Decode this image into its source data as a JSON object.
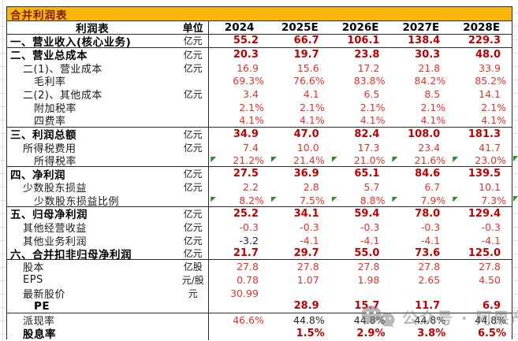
{
  "title": "合并利润表",
  "watermark": {
    "icon": "wechat-icon",
    "text": "公众号 · 阿果产业视角"
  },
  "colors": {
    "title_band": "#FBB60A",
    "title_text": "#7E1E00",
    "bold_value": "#C00000",
    "value": "#E8332B",
    "black_value": "#262626",
    "flag_green": "#2E8B2E"
  },
  "chart_data": {
    "type": "table",
    "title": "合并利润表",
    "columns": [
      "利润表",
      "单位",
      "2024",
      "2025E",
      "2026E",
      "2027E",
      "2028E"
    ],
    "rows": [
      {
        "label": "一、营业收入(核心业务)",
        "unit": "亿元",
        "values": [
          "55.2",
          "66.7",
          "106.1",
          "138.4",
          "229.3"
        ],
        "bold": true,
        "indent": 0,
        "sep": true
      },
      {
        "label": "二、营业总成本",
        "unit": "亿元",
        "values": [
          "20.3",
          "19.7",
          "23.8",
          "30.3",
          "48.0"
        ],
        "bold": true,
        "indent": 0
      },
      {
        "label": "二(1)、营业成本",
        "unit": "亿元",
        "values": [
          "16.9",
          "15.6",
          "17.2",
          "21.8",
          "33.9"
        ],
        "indent": 1
      },
      {
        "label": "毛利率",
        "unit": "",
        "values": [
          "69.3%",
          "76.6%",
          "83.8%",
          "84.2%",
          "85.2%"
        ],
        "indent": 2
      },
      {
        "label": "二(2)、其他成本",
        "unit": "亿元",
        "values": [
          "3.4",
          "4.1",
          "6.5",
          "8.5",
          "14.1"
        ],
        "indent": 1
      },
      {
        "label": "附加税率",
        "unit": "",
        "values": [
          "2.1%",
          "2.1%",
          "2.1%",
          "2.1%",
          "2.1%"
        ],
        "indent": 2
      },
      {
        "label": "四费率",
        "unit": "",
        "values": [
          "4.1%",
          "4.1%",
          "4.1%",
          "4.1%",
          "4.1%"
        ],
        "indent": 2,
        "sep": true
      },
      {
        "label": "三、利润总额",
        "unit": "亿元",
        "values": [
          "34.9",
          "47.0",
          "82.4",
          "108.0",
          "181.3"
        ],
        "bold": true,
        "indent": 0
      },
      {
        "label": "所得税费用",
        "unit": "亿元",
        "values": [
          "7.4",
          "10.0",
          "17.3",
          "23.4",
          "41.7"
        ],
        "indent": 1
      },
      {
        "label": "所得税率",
        "unit": "",
        "values": [
          "21.2%",
          "21.4%",
          "21.0%",
          "21.6%",
          "23.0%"
        ],
        "indent": 2,
        "flags": true,
        "sep": true
      },
      {
        "label": "四、净利润",
        "unit": "亿元",
        "values": [
          "27.5",
          "36.9",
          "65.1",
          "84.6",
          "139.5"
        ],
        "bold": true,
        "indent": 0
      },
      {
        "label": "少数股东损益",
        "unit": "亿元",
        "values": [
          "2.2",
          "2.8",
          "5.7",
          "6.7",
          "10.1"
        ],
        "indent": 1
      },
      {
        "label": "少数股东损益比例",
        "unit": "",
        "values": [
          "8.2%",
          "7.5%",
          "8.8%",
          "7.9%",
          "7.3%"
        ],
        "indent": 2,
        "flags": true,
        "sep": true
      },
      {
        "label": "五、归母净利润",
        "unit": "亿元",
        "values": [
          "25.2",
          "34.1",
          "59.4",
          "78.0",
          "129.4"
        ],
        "bold": true,
        "indent": 0
      },
      {
        "label": "其他经营收益",
        "unit": "亿元",
        "values": [
          "-0.3",
          "-0.3",
          "-0.3",
          "-0.3",
          "-0.3"
        ],
        "indent": 1
      },
      {
        "label": "其他业务利润",
        "unit": "亿元",
        "values": [
          "-3.2",
          "-4.1",
          "-4.1",
          "-4.1",
          "-4.1"
        ],
        "indent": 1,
        "value_colors": [
          "black",
          null,
          null,
          null,
          null
        ]
      },
      {
        "label": "六、合并扣非归母净利润",
        "unit": "亿元",
        "values": [
          "21.7",
          "29.7",
          "55.0",
          "73.6",
          "125.0"
        ],
        "bold": true,
        "indent": 0,
        "sep": true
      },
      {
        "label": "股本",
        "unit": "亿股",
        "values": [
          "27.8",
          "27.8",
          "27.8",
          "27.8",
          "27.8"
        ],
        "indent": 1
      },
      {
        "label": "EPS",
        "unit": "元/股",
        "values": [
          "0.78",
          "1.07",
          "1.98",
          "2.65",
          "4.50"
        ],
        "indent": 1
      },
      {
        "label": "最新股价",
        "unit": "元",
        "values": [
          "30.99",
          "",
          "",
          "",
          ""
        ],
        "indent": 1
      },
      {
        "label": "PE",
        "unit": "",
        "values": [
          "",
          "28.9",
          "15.7",
          "11.7",
          "6.9"
        ],
        "bold": true,
        "indent": 2,
        "sep": true
      },
      {
        "label": "派现率",
        "unit": "",
        "values": [
          "46.6%",
          "44.8%",
          "44.8%",
          "44.8%",
          "44.8%"
        ],
        "indent": 1,
        "value_colors": [
          null,
          "black",
          "black",
          "black",
          "black"
        ]
      },
      {
        "label": "股息率",
        "unit": "",
        "values": [
          "",
          "1.5%",
          "2.9%",
          "3.8%",
          "6.5%"
        ],
        "bold": true,
        "indent": 1
      }
    ]
  }
}
